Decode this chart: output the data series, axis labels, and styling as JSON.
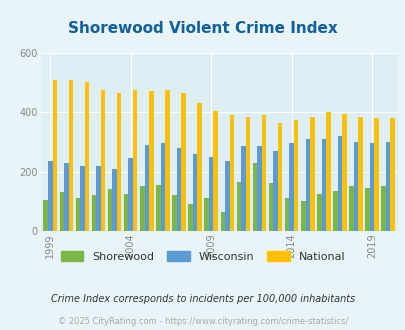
{
  "title": "Shorewood Violent Crime Index",
  "years": [
    1999,
    2000,
    2001,
    2002,
    2003,
    2004,
    2005,
    2006,
    2007,
    2008,
    2009,
    2010,
    2011,
    2012,
    2013,
    2014,
    2015,
    2016,
    2017,
    2018,
    2019,
    2020
  ],
  "shorewood": [
    105,
    130,
    110,
    120,
    140,
    125,
    150,
    155,
    120,
    90,
    110,
    65,
    165,
    230,
    160,
    110,
    100,
    125,
    135,
    150,
    145,
    150
  ],
  "wisconsin": [
    235,
    230,
    220,
    220,
    210,
    245,
    290,
    295,
    280,
    260,
    250,
    235,
    285,
    285,
    270,
    295,
    310,
    310,
    320,
    300,
    295,
    300
  ],
  "national": [
    510,
    510,
    500,
    475,
    465,
    475,
    470,
    475,
    465,
    430,
    405,
    390,
    385,
    390,
    365,
    375,
    385,
    400,
    395,
    385,
    380,
    380
  ],
  "shorewood_color": "#7ab648",
  "wisconsin_color": "#5b9bd5",
  "national_color": "#ffc000",
  "bg_color": "#e8f4f8",
  "plot_bg": "#ddeef5",
  "title_color": "#1060a0",
  "ylim": [
    0,
    600
  ],
  "yticks": [
    0,
    200,
    400,
    600
  ],
  "footer_text": "Crime Index corresponds to incidents per 100,000 inhabitants",
  "copyright_text": "© 2025 CityRating.com - https://www.cityrating.com/crime-statistics/",
  "bar_width": 0.28,
  "x_tick_labels": [
    "1999",
    "2004",
    "2009",
    "2014",
    "2019"
  ],
  "x_tick_positions": [
    0,
    5,
    10,
    15,
    20
  ]
}
